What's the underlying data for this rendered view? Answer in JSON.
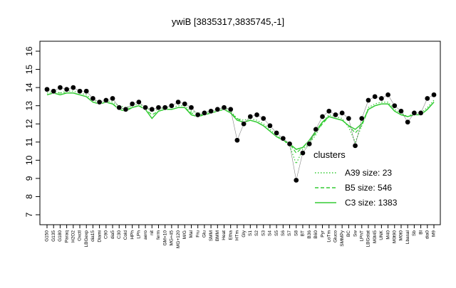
{
  "chart_data": {
    "type": "line",
    "title": "ywiB [3835317,3835745,-1]",
    "xlabel": "",
    "ylabel": "",
    "ylim": [
      7,
      16
    ],
    "yticks": [
      7,
      8,
      9,
      10,
      11,
      12,
      13,
      14,
      15,
      16
    ],
    "grid": false,
    "legend_title": "clusters",
    "legend_position": "right",
    "x_tick_labels": [
      "G150",
      "G135",
      "G180",
      "Paraq",
      "H2O2",
      "Oxctl",
      "LBGexp",
      "dia15",
      "Diami",
      "C90",
      "dia5",
      "C30",
      "Cold",
      "HPh",
      "LPh",
      "aero",
      "nit",
      "ferm",
      "GM+10",
      "MG+45",
      "MG+120",
      "M/G",
      "Mal",
      "Fru",
      "Glu",
      "SMM",
      "BMM",
      "Heat",
      "Etha",
      "HTm",
      "Gly",
      "S1",
      "S2",
      "S3",
      "S4",
      "S5",
      "S6",
      "S7",
      "S8",
      "BT",
      "B36",
      "B60",
      "Pyr",
      "LoTm",
      "Gluco",
      "SMMPy",
      "BC",
      "Sw",
      "LPhT",
      "LBGstat",
      "M0t45",
      "UNK",
      "M40",
      "M0t90",
      "M0t0",
      "Lbasal",
      "Sb",
      "Bl",
      "dia0",
      "M9"
    ],
    "series": [
      {
        "name": "A39 size: 23",
        "style": "dotted",
        "color": "#33cc33",
        "values": [
          13.7,
          13.8,
          13.7,
          13.8,
          13.8,
          13.7,
          13.6,
          13.3,
          13.2,
          13.3,
          13.2,
          13.0,
          12.9,
          13.0,
          13.1,
          12.9,
          12.7,
          12.8,
          12.9,
          12.9,
          13.0,
          13.0,
          12.7,
          12.6,
          12.6,
          12.7,
          12.8,
          12.9,
          12.7,
          12.3,
          12.2,
          12.3,
          12.2,
          12.0,
          11.7,
          11.4,
          11.1,
          10.8,
          9.8,
          10.6,
          10.9,
          11.4,
          12.1,
          12.5,
          12.4,
          12.3,
          11.8,
          11.0,
          11.9,
          12.9,
          13.1,
          13.2,
          13.2,
          12.8,
          12.6,
          12.4,
          12.6,
          12.6,
          12.9,
          13.3
        ]
      },
      {
        "name": "B5 size: 546",
        "style": "dashed",
        "color": "#33cc33",
        "values": [
          13.6,
          13.7,
          13.7,
          13.7,
          13.7,
          13.6,
          13.5,
          13.2,
          13.1,
          13.2,
          13.1,
          12.9,
          12.8,
          12.9,
          13.0,
          12.8,
          12.5,
          12.7,
          12.8,
          12.8,
          12.9,
          12.9,
          12.6,
          12.5,
          12.5,
          12.6,
          12.7,
          12.8,
          12.6,
          12.3,
          12.1,
          12.2,
          12.1,
          11.9,
          11.6,
          11.3,
          11.1,
          10.9,
          10.4,
          10.7,
          11.0,
          11.5,
          12.0,
          12.4,
          12.3,
          12.2,
          11.9,
          11.5,
          11.9,
          12.8,
          13.0,
          13.1,
          13.1,
          12.7,
          12.5,
          12.4,
          12.5,
          12.5,
          12.8,
          13.2
        ]
      },
      {
        "name": "C3 size: 1383",
        "style": "solid",
        "color": "#33cc33",
        "values": [
          13.6,
          13.7,
          13.6,
          13.7,
          13.7,
          13.6,
          13.5,
          13.2,
          13.1,
          13.2,
          13.1,
          12.8,
          12.7,
          12.9,
          13.0,
          12.8,
          12.3,
          12.7,
          12.8,
          12.8,
          12.9,
          12.9,
          12.5,
          12.4,
          12.5,
          12.6,
          12.7,
          12.8,
          12.6,
          12.2,
          12.1,
          12.2,
          12.1,
          11.9,
          11.6,
          11.3,
          11.1,
          10.9,
          10.6,
          10.7,
          11.1,
          11.6,
          12.1,
          12.4,
          12.3,
          12.2,
          11.9,
          11.7,
          12.0,
          12.8,
          13.0,
          13.1,
          13.1,
          12.7,
          12.5,
          12.4,
          12.5,
          12.5,
          12.8,
          13.2
        ]
      }
    ],
    "points": {
      "name": "ywiB",
      "color": "#000000",
      "values": [
        13.9,
        13.8,
        14.0,
        13.9,
        14.0,
        13.8,
        13.8,
        13.4,
        13.2,
        13.3,
        13.4,
        12.9,
        12.8,
        13.1,
        13.2,
        12.9,
        12.8,
        12.9,
        12.9,
        13.0,
        13.2,
        13.1,
        12.9,
        12.5,
        12.6,
        12.7,
        12.8,
        12.9,
        12.8,
        11.1,
        12.0,
        12.4,
        12.5,
        12.3,
        11.9,
        11.5,
        11.2,
        10.9,
        8.9,
        10.4,
        10.9,
        11.7,
        12.4,
        12.7,
        12.5,
        12.6,
        12.3,
        10.8,
        12.3,
        13.3,
        13.5,
        13.4,
        13.6,
        13.0,
        12.7,
        12.1,
        12.6,
        12.6,
        13.4,
        13.6
      ]
    }
  }
}
